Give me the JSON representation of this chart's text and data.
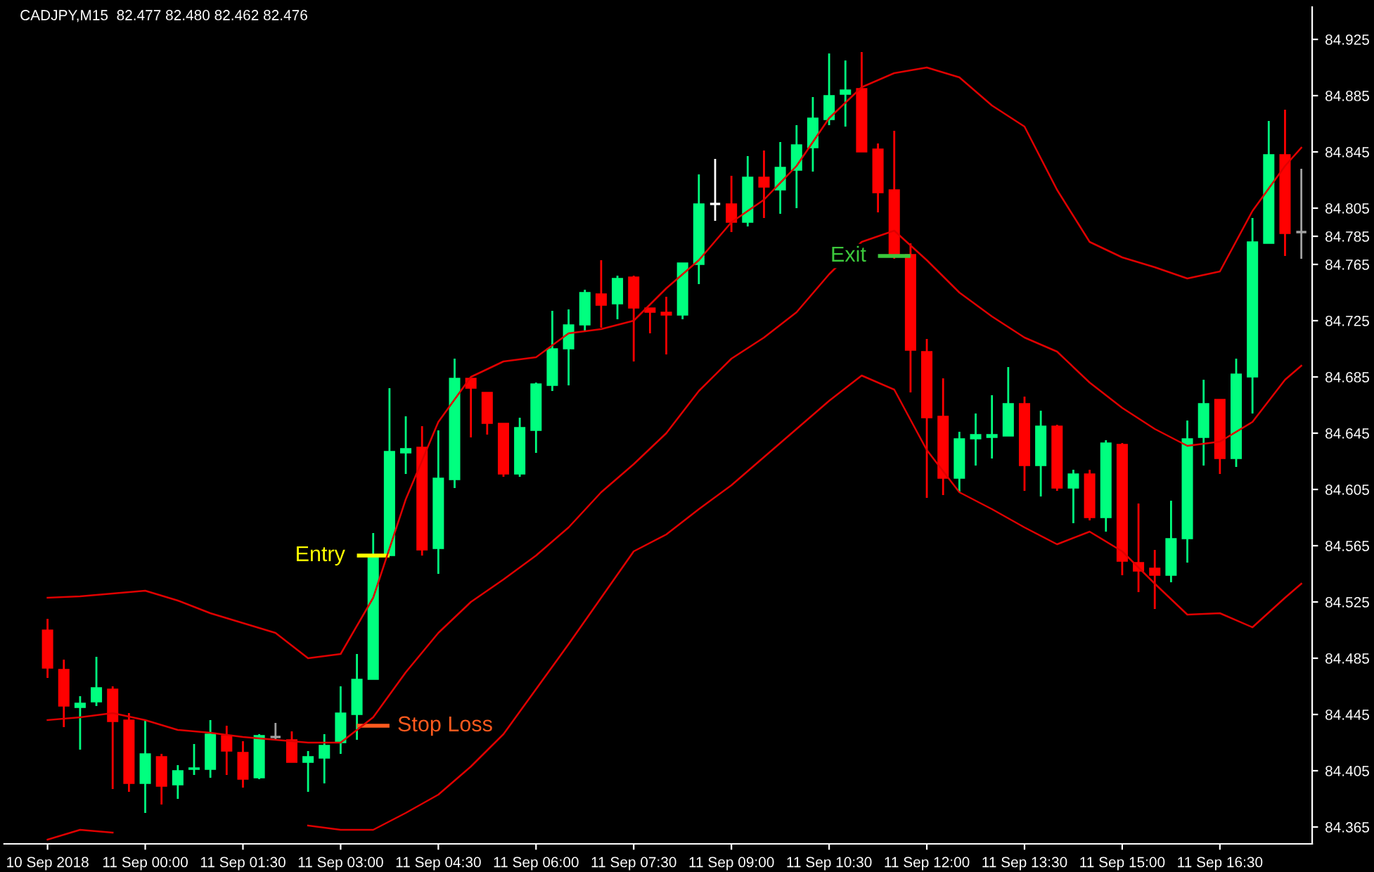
{
  "chart_data": {
    "type": "candlestick",
    "title": "CADJPY,M15  82.477 82.480 82.462 82.476",
    "series": [
      {
        "type": "candlestick",
        "x": [
          "2018-09-10T22:30",
          "2018-09-10T22:45",
          "2018-09-10T23:00",
          "2018-09-10T23:15",
          "2018-09-10T23:30",
          "2018-09-10T23:45",
          "2018-09-11T00:00",
          "2018-09-11T00:15",
          "2018-09-11T00:30",
          "2018-09-11T00:45",
          "2018-09-11T01:00",
          "2018-09-11T01:15",
          "2018-09-11T01:30",
          "2018-09-11T01:45",
          "2018-09-11T02:00",
          "2018-09-11T02:15",
          "2018-09-11T02:30",
          "2018-09-11T02:45",
          "2018-09-11T03:00",
          "2018-09-11T03:15",
          "2018-09-11T03:30",
          "2018-09-11T03:45",
          "2018-09-11T04:00",
          "2018-09-11T04:15",
          "2018-09-11T04:30",
          "2018-09-11T04:45",
          "2018-09-11T05:00",
          "2018-09-11T05:15",
          "2018-09-11T05:30",
          "2018-09-11T05:45",
          "2018-09-11T06:00",
          "2018-09-11T06:15",
          "2018-09-11T06:30",
          "2018-09-11T06:45",
          "2018-09-11T07:00",
          "2018-09-11T07:15",
          "2018-09-11T07:30",
          "2018-09-11T07:45",
          "2018-09-11T08:00",
          "2018-09-11T08:15",
          "2018-09-11T08:30",
          "2018-09-11T08:45",
          "2018-09-11T09:00",
          "2018-09-11T09:15",
          "2018-09-11T09:30",
          "2018-09-11T09:45",
          "2018-09-11T10:00",
          "2018-09-11T10:15",
          "2018-09-11T10:30",
          "2018-09-11T10:45",
          "2018-09-11T11:00",
          "2018-09-11T11:15",
          "2018-09-11T11:30",
          "2018-09-11T11:45",
          "2018-09-11T12:00",
          "2018-09-11T12:15",
          "2018-09-11T12:30",
          "2018-09-11T12:45",
          "2018-09-11T13:00",
          "2018-09-11T13:15",
          "2018-09-11T13:30",
          "2018-09-11T13:45",
          "2018-09-11T14:00",
          "2018-09-11T14:15",
          "2018-09-11T14:30",
          "2018-09-11T14:45",
          "2018-09-11T15:00",
          "2018-09-11T15:15",
          "2018-09-11T15:30",
          "2018-09-11T15:45",
          "2018-09-11T16:00",
          "2018-09-11T16:15",
          "2018-09-11T16:30",
          "2018-09-11T16:45",
          "2018-09-11T17:00",
          "2018-09-11T17:15",
          "2018-09-11T17:30",
          "2018-09-11T17:45"
        ],
        "ohlc": [
          [
            84.505,
            84.513,
            84.471,
            84.478
          ],
          [
            84.477,
            84.484,
            84.436,
            84.451
          ],
          [
            84.45,
            84.458,
            84.42,
            84.453
          ],
          [
            84.454,
            84.486,
            84.451,
            84.464
          ],
          [
            84.463,
            84.465,
            84.392,
            84.44
          ],
          [
            84.441,
            84.446,
            84.39,
            84.396
          ],
          [
            84.396,
            84.441,
            84.375,
            84.417
          ],
          [
            84.415,
            84.417,
            84.381,
            84.394
          ],
          [
            84.395,
            84.409,
            84.385,
            84.405
          ],
          [
            84.406,
            84.424,
            84.402,
            84.407
          ],
          [
            84.406,
            84.441,
            84.4,
            84.431
          ],
          [
            84.43,
            84.437,
            84.402,
            84.419
          ],
          [
            84.418,
            84.426,
            84.393,
            84.399
          ],
          [
            84.4,
            84.431,
            84.399,
            84.43
          ],
          [
            84.429,
            84.439,
            84.427,
            84.429
          ],
          [
            84.427,
            84.433,
            84.411,
            84.411
          ],
          [
            84.411,
            84.419,
            84.39,
            84.415
          ],
          [
            84.414,
            84.431,
            84.396,
            84.423
          ],
          [
            84.425,
            84.465,
            84.417,
            84.446
          ],
          [
            84.445,
            84.488,
            84.427,
            84.47
          ],
          [
            84.47,
            84.574,
            84.47,
            84.558
          ],
          [
            84.558,
            84.677,
            84.558,
            84.632
          ],
          [
            84.631,
            84.657,
            84.616,
            84.634
          ],
          [
            84.635,
            84.65,
            84.558,
            84.562
          ],
          [
            84.563,
            84.647,
            84.545,
            84.613
          ],
          [
            84.612,
            84.698,
            84.606,
            84.684
          ],
          [
            84.684,
            84.684,
            84.642,
            84.677
          ],
          [
            84.674,
            84.674,
            84.644,
            84.652
          ],
          [
            84.652,
            84.652,
            84.614,
            84.616
          ],
          [
            84.616,
            84.656,
            84.614,
            84.649
          ],
          [
            84.647,
            84.681,
            84.631,
            84.68
          ],
          [
            84.679,
            84.732,
            84.675,
            84.705
          ],
          [
            84.705,
            84.733,
            84.679,
            84.722
          ],
          [
            84.722,
            84.747,
            84.718,
            84.745
          ],
          [
            84.744,
            84.768,
            84.72,
            84.736
          ],
          [
            84.737,
            84.757,
            84.726,
            84.755
          ],
          [
            84.756,
            84.757,
            84.696,
            84.734
          ],
          [
            84.734,
            84.734,
            84.716,
            84.731
          ],
          [
            84.731,
            84.742,
            84.701,
            84.729
          ],
          [
            84.729,
            84.766,
            84.726,
            84.766
          ],
          [
            84.765,
            84.829,
            84.751,
            84.808
          ],
          [
            84.808,
            84.84,
            84.796,
            84.808
          ],
          [
            84.808,
            84.828,
            84.788,
            84.795
          ],
          [
            84.795,
            84.842,
            84.792,
            84.827
          ],
          [
            84.827,
            84.846,
            84.798,
            84.82
          ],
          [
            84.818,
            84.852,
            84.801,
            84.834
          ],
          [
            84.832,
            84.864,
            84.805,
            84.85
          ],
          [
            84.848,
            84.884,
            84.831,
            84.869
          ],
          [
            84.868,
            84.915,
            84.864,
            84.885
          ],
          [
            84.886,
            84.91,
            84.863,
            84.889
          ],
          [
            84.89,
            84.916,
            84.845,
            84.845
          ],
          [
            84.847,
            84.851,
            84.802,
            84.816
          ],
          [
            84.818,
            84.86,
            84.769,
            84.771
          ],
          [
            84.772,
            84.78,
            84.674,
            84.704
          ],
          [
            84.703,
            84.712,
            84.599,
            84.656
          ],
          [
            84.657,
            84.684,
            84.601,
            84.613
          ],
          [
            84.613,
            84.646,
            84.603,
            84.641
          ],
          [
            84.641,
            84.659,
            84.622,
            84.644
          ],
          [
            84.642,
            84.672,
            84.627,
            84.644
          ],
          [
            84.643,
            84.692,
            84.643,
            84.666
          ],
          [
            84.666,
            84.671,
            84.604,
            84.622
          ],
          [
            84.622,
            84.661,
            84.6,
            84.65
          ],
          [
            84.65,
            84.651,
            84.604,
            84.606
          ],
          [
            84.606,
            84.619,
            84.581,
            84.616
          ],
          [
            84.616,
            84.619,
            84.583,
            84.585
          ],
          [
            84.585,
            84.64,
            84.575,
            84.638
          ],
          [
            84.637,
            84.638,
            84.544,
            84.554
          ],
          [
            84.553,
            84.595,
            84.532,
            84.547
          ],
          [
            84.549,
            84.562,
            84.52,
            84.544
          ],
          [
            84.544,
            84.597,
            84.539,
            84.57
          ],
          [
            84.57,
            84.654,
            84.553,
            84.641
          ],
          [
            84.642,
            84.683,
            84.622,
            84.666
          ],
          [
            84.669,
            84.669,
            84.616,
            84.627
          ],
          [
            84.627,
            84.698,
            84.621,
            84.687
          ],
          [
            84.685,
            84.798,
            84.659,
            84.781
          ],
          [
            84.78,
            84.867,
            84.78,
            84.843
          ],
          [
            84.843,
            84.875,
            84.771,
            84.787
          ],
          [
            84.788,
            84.833,
            84.769,
            84.788
          ]
        ],
        "colors": [
          "#ff0000",
          "#ff0000",
          "#00ff7f",
          "#00ff7f",
          "#ff0000",
          "#ff0000",
          "#00ff7f",
          "#ff0000",
          "#00ff7f",
          "#00ff7f",
          "#00ff7f",
          "#ff0000",
          "#ff0000",
          "#00ff7f",
          "#a0a0a0",
          "#ff0000",
          "#00ff7f",
          "#00ff7f",
          "#00ff7f",
          "#00ff7f",
          "#00ff7f",
          "#00ff7f",
          "#00ff7f",
          "#ff0000",
          "#00ff7f",
          "#00ff7f",
          "#ff0000",
          "#ff0000",
          "#ff0000",
          "#00ff7f",
          "#00ff7f",
          "#00ff7f",
          "#00ff7f",
          "#00ff7f",
          "#ff0000",
          "#00ff7f",
          "#ff0000",
          "#ff0000",
          "#ff0000",
          "#00ff7f",
          "#00ff7f",
          "#ffffff",
          "#ff0000",
          "#00ff7f",
          "#ff0000",
          "#00ff7f",
          "#00ff7f",
          "#00ff7f",
          "#00ff7f",
          "#00ff7f",
          "#ff0000",
          "#ff0000",
          "#ff0000",
          "#ff0000",
          "#ff0000",
          "#ff0000",
          "#00ff7f",
          "#00ff7f",
          "#00ff7f",
          "#00ff7f",
          "#ff0000",
          "#00ff7f",
          "#ff0000",
          "#00ff7f",
          "#ff0000",
          "#00ff7f",
          "#ff0000",
          "#ff0000",
          "#ff0000",
          "#00ff7f",
          "#00ff7f",
          "#00ff7f",
          "#ff0000",
          "#00ff7f",
          "#00ff7f",
          "#00ff7f",
          "#ff0000",
          "#a0a0a0"
        ]
      },
      {
        "type": "line",
        "color": "#e00000",
        "x": [
          "2018-09-10T22:30",
          "2018-09-10T23:00",
          "2018-09-10T23:30",
          "2018-09-11T00:00",
          "2018-09-11T00:30",
          "2018-09-11T01:00",
          "2018-09-11T01:30",
          "2018-09-11T02:00",
          "2018-09-11T02:30",
          "2018-09-11T03:00",
          "2018-09-11T03:30",
          "2018-09-11T04:00",
          "2018-09-11T04:30",
          "2018-09-11T05:00",
          "2018-09-11T05:30",
          "2018-09-11T06:00",
          "2018-09-11T06:30",
          "2018-09-11T07:00",
          "2018-09-11T07:30",
          "2018-09-11T08:00",
          "2018-09-11T08:30",
          "2018-09-11T09:00",
          "2018-09-11T09:30",
          "2018-09-11T10:00",
          "2018-09-11T10:30",
          "2018-09-11T11:00",
          "2018-09-11T11:30",
          "2018-09-11T12:00",
          "2018-09-11T12:30",
          "2018-09-11T13:00",
          "2018-09-11T13:30",
          "2018-09-11T14:00",
          "2018-09-11T14:30",
          "2018-09-11T15:00",
          "2018-09-11T15:30",
          "2018-09-11T16:00",
          "2018-09-11T16:30",
          "2018-09-11T17:00",
          "2018-09-11T17:30",
          "2018-09-11T17:45"
        ],
        "values": [
          84.528,
          84.529,
          84.531,
          84.533,
          84.526,
          84.517,
          84.51,
          84.503,
          84.485,
          84.488,
          84.528,
          84.598,
          84.653,
          84.685,
          84.696,
          84.699,
          84.716,
          84.719,
          84.725,
          84.748,
          84.768,
          84.795,
          84.811,
          84.835,
          84.869,
          84.891,
          84.901,
          84.905,
          84.898,
          84.878,
          84.863,
          84.818,
          84.781,
          84.77,
          84.763,
          84.755,
          84.76,
          84.803,
          84.835,
          84.848
        ]
      },
      {
        "type": "line",
        "color": "#e00000",
        "x": [
          "2018-09-10T22:30",
          "2018-09-10T23:00",
          "2018-09-10T23:30",
          "2018-09-11T00:00",
          "2018-09-11T00:30",
          "2018-09-11T01:00",
          "2018-09-11T01:30",
          "2018-09-11T02:00",
          "2018-09-11T02:30",
          "2018-09-11T03:00",
          "2018-09-11T03:30",
          "2018-09-11T04:00",
          "2018-09-11T04:30",
          "2018-09-11T05:00",
          "2018-09-11T05:30",
          "2018-09-11T06:00",
          "2018-09-11T06:30",
          "2018-09-11T07:00",
          "2018-09-11T07:30",
          "2018-09-11T08:00",
          "2018-09-11T08:30",
          "2018-09-11T09:00",
          "2018-09-11T09:30",
          "2018-09-11T10:00",
          "2018-09-11T10:30",
          "2018-09-11T11:00",
          "2018-09-11T11:30",
          "2018-09-11T12:00",
          "2018-09-11T12:30",
          "2018-09-11T13:00",
          "2018-09-11T13:30",
          "2018-09-11T14:00",
          "2018-09-11T14:30",
          "2018-09-11T15:00",
          "2018-09-11T15:30",
          "2018-09-11T16:00",
          "2018-09-11T16:30",
          "2018-09-11T17:00",
          "2018-09-11T17:30",
          "2018-09-11T17:45"
        ],
        "values": [
          84.441,
          84.443,
          84.446,
          84.441,
          84.434,
          84.432,
          84.429,
          84.427,
          84.425,
          84.425,
          84.443,
          84.475,
          84.503,
          84.525,
          84.541,
          84.558,
          84.578,
          84.603,
          84.623,
          84.645,
          84.675,
          84.698,
          84.713,
          84.731,
          84.758,
          84.781,
          84.789,
          84.768,
          84.745,
          84.728,
          84.713,
          84.703,
          84.681,
          84.663,
          84.648,
          84.636,
          84.639,
          84.653,
          84.683,
          84.693
        ]
      },
      {
        "type": "line",
        "color": "#e00000",
        "x": [
          "2018-09-10T22:30",
          "2018-09-10T23:00",
          "2018-09-10T23:30",
          "2018-09-11T00:00",
          "2018-09-11T00:30",
          "2018-09-11T01:00",
          "2018-09-11T01:30",
          "2018-09-11T02:00",
          "2018-09-11T02:30",
          "2018-09-11T03:00",
          "2018-09-11T03:30",
          "2018-09-11T04:00",
          "2018-09-11T04:30",
          "2018-09-11T05:00",
          "2018-09-11T05:30",
          "2018-09-11T06:00",
          "2018-09-11T06:30",
          "2018-09-11T07:00",
          "2018-09-11T07:30",
          "2018-09-11T08:00",
          "2018-09-11T08:30",
          "2018-09-11T09:00",
          "2018-09-11T09:30",
          "2018-09-11T10:00",
          "2018-09-11T10:30",
          "2018-09-11T11:00",
          "2018-09-11T11:30",
          "2018-09-11T12:00",
          "2018-09-11T12:30",
          "2018-09-11T13:00",
          "2018-09-11T13:30",
          "2018-09-11T14:00",
          "2018-09-11T14:30",
          "2018-09-11T15:00",
          "2018-09-11T15:30",
          "2018-09-11T16:00",
          "2018-09-11T16:30",
          "2018-09-11T17:00",
          "2018-09-11T17:30",
          "2018-09-11T17:45"
        ],
        "values": [
          84.356,
          84.363,
          84.361,
          null,
          null,
          null,
          null,
          null,
          84.366,
          84.363,
          84.363,
          84.375,
          84.388,
          84.408,
          84.431,
          84.463,
          84.495,
          84.528,
          84.561,
          84.573,
          84.591,
          84.608,
          84.628,
          84.648,
          84.668,
          84.686,
          84.676,
          84.633,
          84.603,
          84.591,
          84.578,
          84.566,
          84.575,
          84.561,
          84.538,
          84.516,
          84.517,
          84.507,
          84.528,
          84.538
        ]
      }
    ],
    "xlim": [
      "2018-09-10T21:50",
      "2018-09-11T17:55"
    ],
    "xticks": [
      {
        "value": "2018-09-10T22:30",
        "label": "10 Sep 2018"
      },
      {
        "value": "2018-09-11T00:00",
        "label": "11 Sep 00:00"
      },
      {
        "value": "2018-09-11T01:30",
        "label": "11 Sep 01:30"
      },
      {
        "value": "2018-09-11T03:00",
        "label": "11 Sep 03:00"
      },
      {
        "value": "2018-09-11T04:30",
        "label": "11 Sep 04:30"
      },
      {
        "value": "2018-09-11T06:00",
        "label": "11 Sep 06:00"
      },
      {
        "value": "2018-09-11T07:30",
        "label": "11 Sep 07:30"
      },
      {
        "value": "2018-09-11T09:00",
        "label": "11 Sep 09:00"
      },
      {
        "value": "2018-09-11T10:30",
        "label": "11 Sep 10:30"
      },
      {
        "value": "2018-09-11T12:00",
        "label": "11 Sep 12:00"
      },
      {
        "value": "2018-09-11T13:30",
        "label": "11 Sep 13:30"
      },
      {
        "value": "2018-09-11T15:00",
        "label": "11 Sep 15:00"
      },
      {
        "value": "2018-09-11T16:30",
        "label": "11 Sep 16:30"
      }
    ],
    "ylim": [
      84.353,
      84.948
    ],
    "yticks": [
      84.365,
      84.405,
      84.445,
      84.485,
      84.525,
      84.565,
      84.605,
      84.645,
      84.685,
      84.725,
      84.765,
      84.785,
      84.805,
      84.845,
      84.885,
      84.925
    ],
    "annotations": [
      {
        "text": "Entry",
        "x": "2018-09-11T03:30",
        "y": 84.558
      },
      {
        "text": "Stop Loss",
        "x": "2018-09-11T03:30",
        "y": 84.437
      },
      {
        "text": "Exit",
        "x": "2018-09-11T11:30",
        "y": 84.771
      }
    ],
    "grid": false,
    "legend": false
  }
}
